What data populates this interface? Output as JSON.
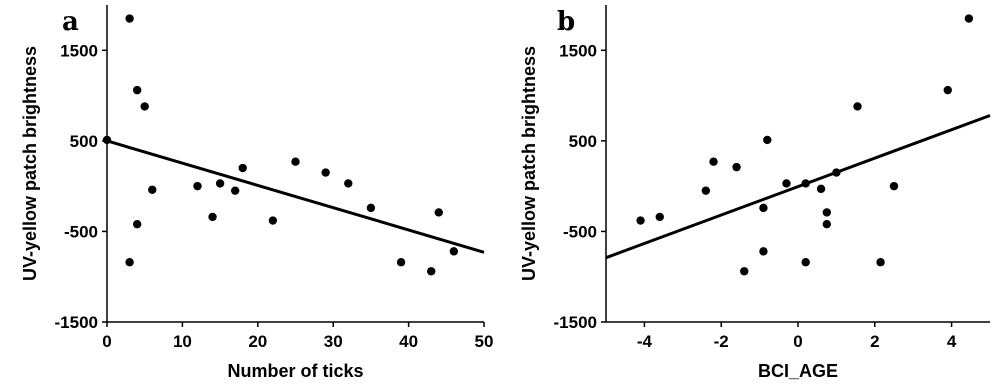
{
  "chart_data": [
    {
      "type": "scatter",
      "panel_label": "a",
      "title": "",
      "xlabel": "Number of ticks",
      "ylabel": "UV-yellow patch brightness",
      "xlim": [
        0,
        50
      ],
      "ylim": [
        -1500,
        2000
      ],
      "xticks": [
        0,
        10,
        20,
        30,
        40,
        50
      ],
      "yticks": [
        -1500,
        -500,
        500,
        1500
      ],
      "grid": false,
      "points": [
        {
          "x": 0,
          "y": 510
        },
        {
          "x": 3,
          "y": 1850
        },
        {
          "x": 4,
          "y": 1060
        },
        {
          "x": 5,
          "y": 880
        },
        {
          "x": 4,
          "y": -420
        },
        {
          "x": 3,
          "y": -840
        },
        {
          "x": 6,
          "y": -40
        },
        {
          "x": 12,
          "y": 0
        },
        {
          "x": 14,
          "y": -340
        },
        {
          "x": 15,
          "y": 30
        },
        {
          "x": 17,
          "y": -50
        },
        {
          "x": 18,
          "y": 200
        },
        {
          "x": 22,
          "y": -380
        },
        {
          "x": 25,
          "y": 270
        },
        {
          "x": 29,
          "y": 150
        },
        {
          "x": 32,
          "y": 30
        },
        {
          "x": 35,
          "y": -240
        },
        {
          "x": 39,
          "y": -840
        },
        {
          "x": 43,
          "y": -940
        },
        {
          "x": 44,
          "y": -290
        },
        {
          "x": 46,
          "y": -720
        }
      ],
      "fit_line": {
        "x": [
          0,
          50
        ],
        "y": [
          500,
          -730
        ]
      }
    },
    {
      "type": "scatter",
      "panel_label": "b",
      "title": "",
      "xlabel": "BCI_AGE",
      "ylabel": "UV-yellow patch brightness",
      "xlim": [
        -5,
        5
      ],
      "ylim": [
        -1500,
        2000
      ],
      "xticks": [
        -4,
        -2,
        0,
        2,
        4
      ],
      "yticks": [
        -1500,
        -500,
        500,
        1500
      ],
      "grid": false,
      "points": [
        {
          "x": -4.1,
          "y": -380
        },
        {
          "x": -3.6,
          "y": -340
        },
        {
          "x": -2.4,
          "y": -50
        },
        {
          "x": -2.2,
          "y": 270
        },
        {
          "x": -1.6,
          "y": 210
        },
        {
          "x": -1.4,
          "y": -940
        },
        {
          "x": -0.9,
          "y": -720
        },
        {
          "x": -0.9,
          "y": -240
        },
        {
          "x": -0.8,
          "y": 510
        },
        {
          "x": -0.3,
          "y": 30
        },
        {
          "x": 0.2,
          "y": 30
        },
        {
          "x": 0.2,
          "y": -840
        },
        {
          "x": 0.6,
          "y": -30
        },
        {
          "x": 0.75,
          "y": -290
        },
        {
          "x": 0.75,
          "y": -420
        },
        {
          "x": 1.0,
          "y": 150
        },
        {
          "x": 1.55,
          "y": 880
        },
        {
          "x": 2.15,
          "y": -840
        },
        {
          "x": 2.5,
          "y": 0
        },
        {
          "x": 3.9,
          "y": 1060
        },
        {
          "x": 4.45,
          "y": 1850
        }
      ],
      "fit_line": {
        "x": [
          -5,
          5
        ],
        "y": [
          -790,
          780
        ]
      }
    }
  ]
}
